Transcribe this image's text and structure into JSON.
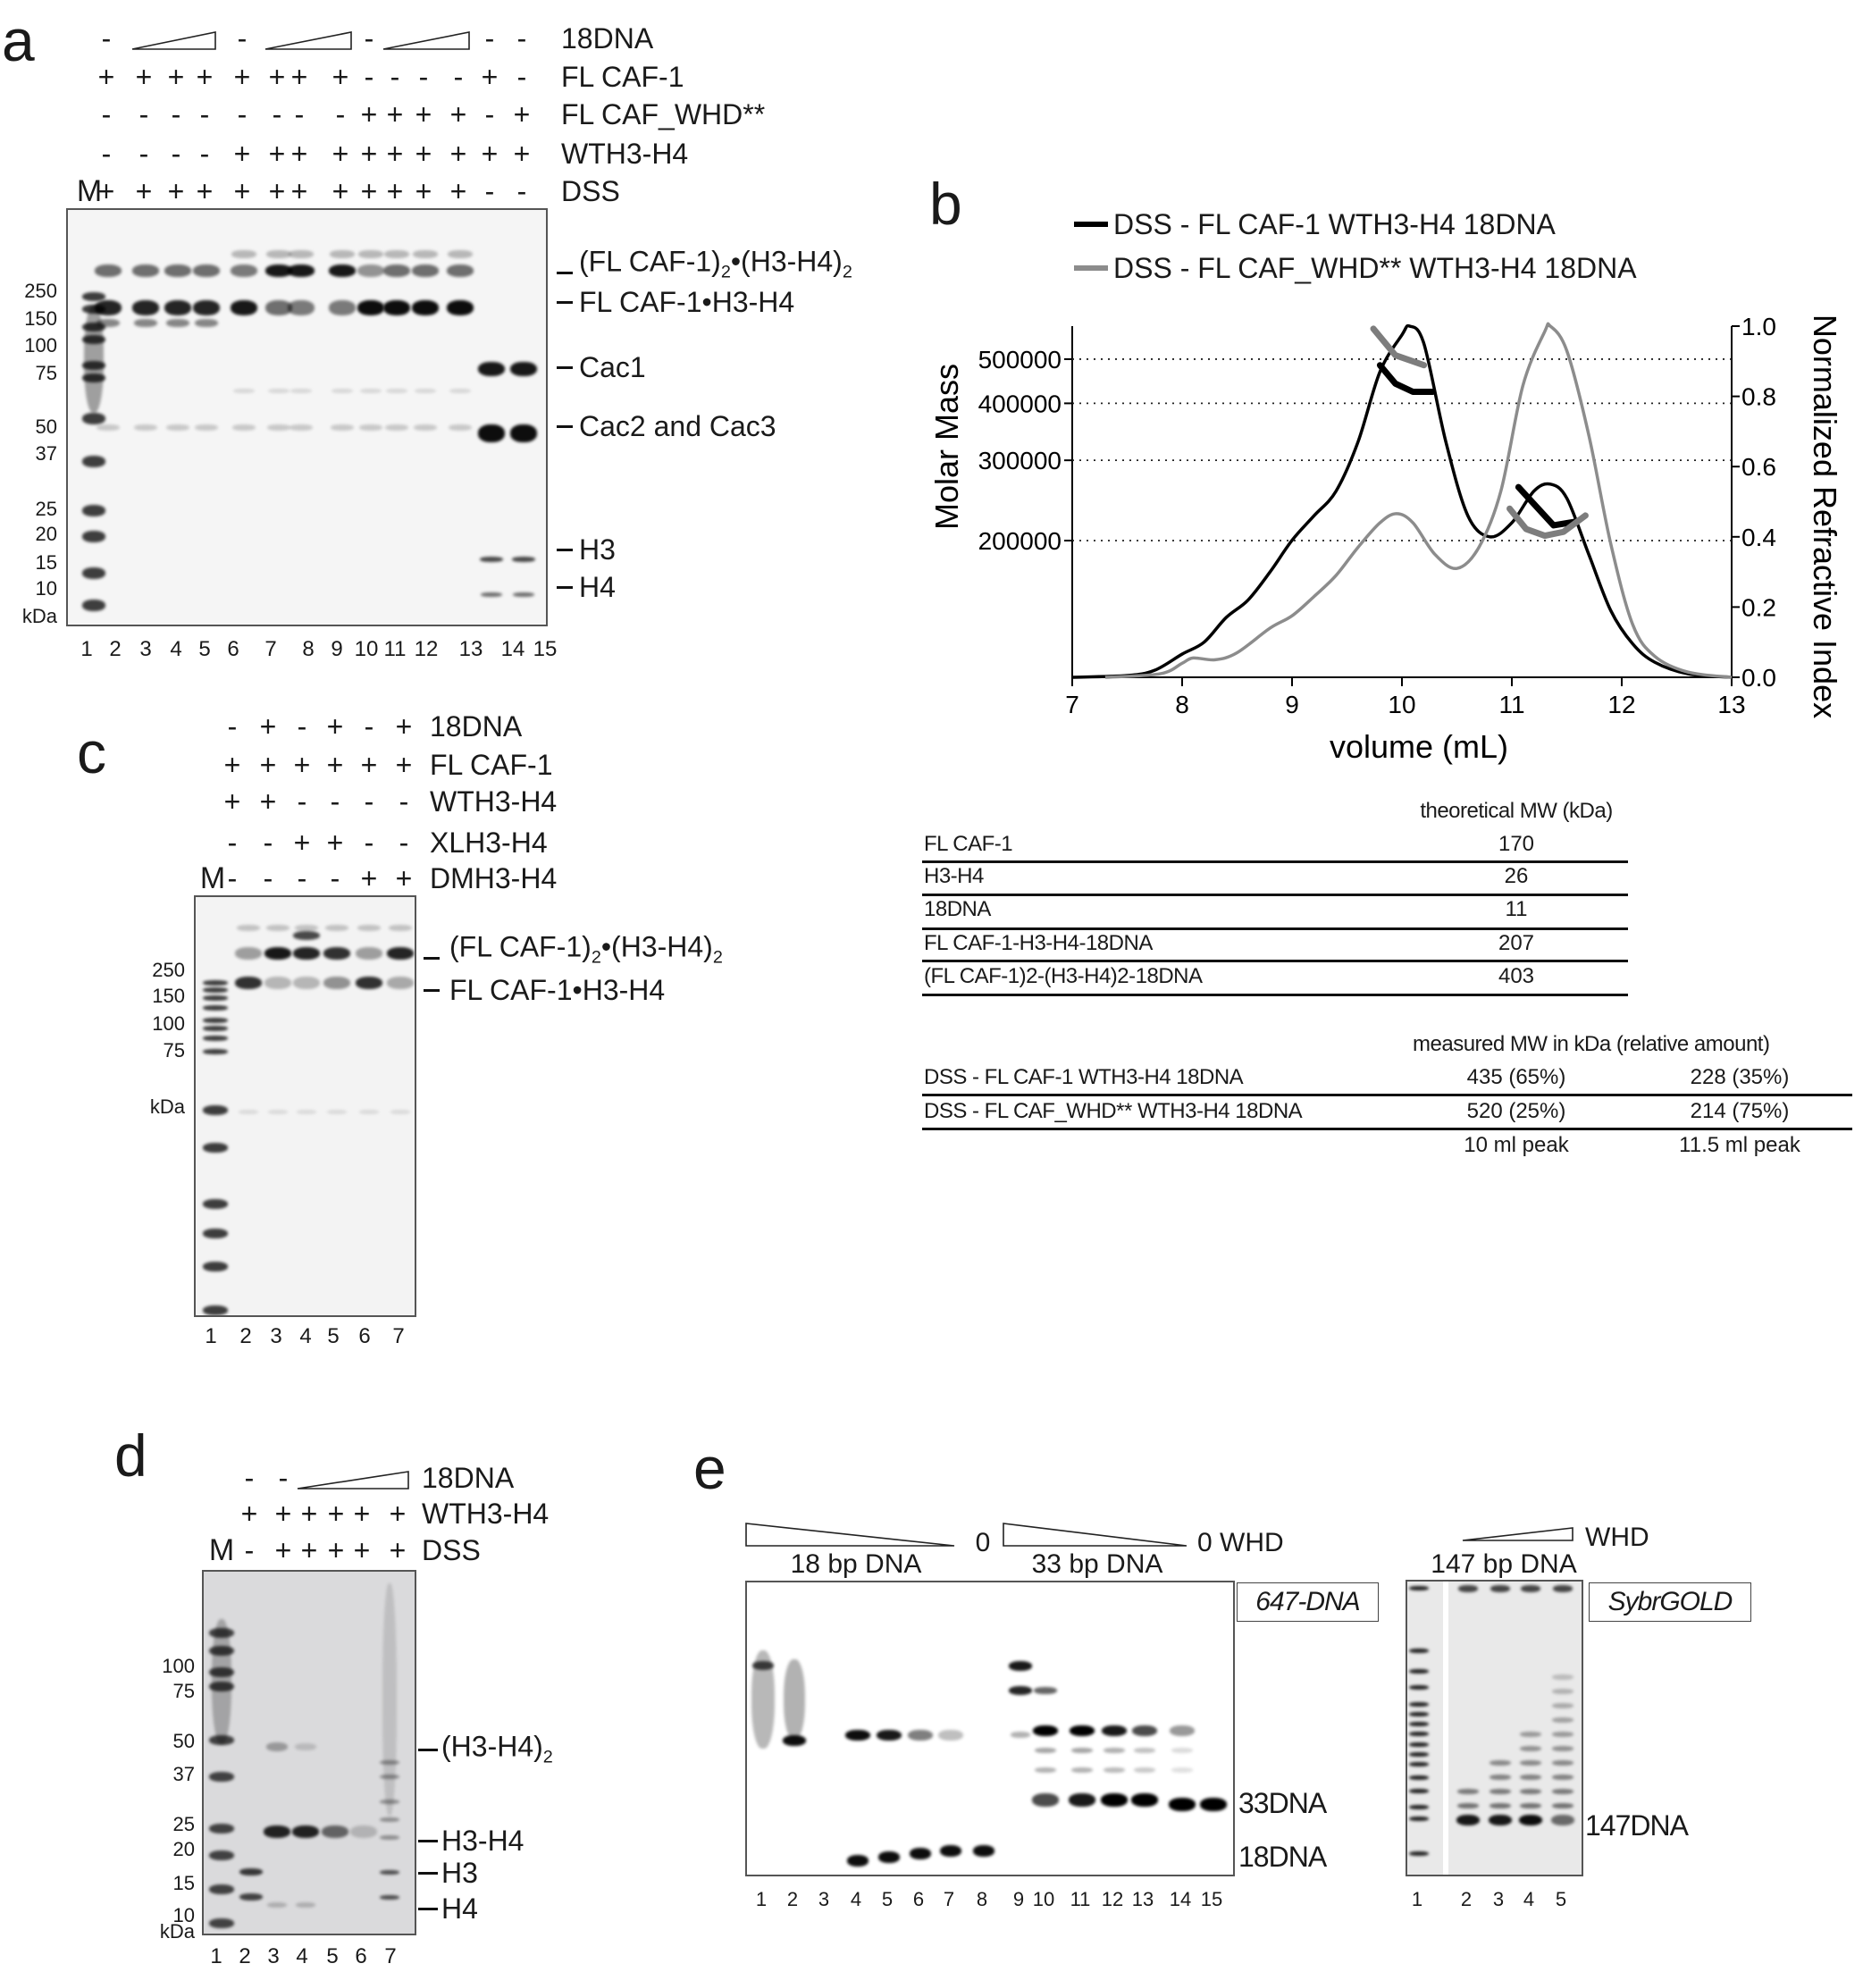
{
  "panel_a": {
    "letter": "a",
    "marker_label": "M",
    "conditions": [
      {
        "label": "18DNA",
        "symbols": [
          "-",
          "ramp",
          "-",
          "ramp",
          "-",
          "ramp",
          "-",
          "-"
        ]
      },
      {
        "label": "FL CAF-1",
        "symbols": [
          "+",
          "+",
          "+",
          "+",
          "+",
          "+",
          "+",
          "+",
          "-",
          "-",
          "-",
          "-",
          "+",
          "-"
        ]
      },
      {
        "label": "FL CAF_WHD**",
        "symbols": [
          "-",
          "-",
          "-",
          "-",
          "-",
          "-",
          "-",
          "-",
          "+",
          "+",
          "+",
          "+",
          "-",
          "+"
        ]
      },
      {
        "label": "WTH3-H4",
        "symbols": [
          "-",
          "-",
          "-",
          "-",
          "+",
          "+",
          "+",
          "+",
          "+",
          "+",
          "+",
          "+",
          "+",
          "+"
        ]
      },
      {
        "label": "DSS",
        "symbols": [
          "+",
          "+",
          "+",
          "+",
          "+",
          "+",
          "+",
          "+",
          "+",
          "+",
          "+",
          "+",
          "-",
          "-"
        ]
      }
    ],
    "markers": [
      "250",
      "150",
      "100",
      "75",
      "50",
      "37",
      "25",
      "20",
      "15",
      "10",
      "kDa"
    ],
    "lanes": [
      "1",
      "2",
      "3",
      "4",
      "5",
      "6",
      "7",
      "8",
      "9",
      "10",
      "11",
      "12",
      "13",
      "14",
      "15"
    ],
    "band_labels": [
      {
        "parts": [
          "(FL CAF-1)",
          "2",
          "•(H3-H4)",
          "2"
        ]
      },
      {
        "parts": [
          "FL CAF-1•H3-H4"
        ]
      },
      {
        "parts": [
          "Cac1"
        ]
      },
      {
        "parts": [
          "Cac2 and Cac3"
        ]
      },
      {
        "parts": [
          "H3"
        ]
      },
      {
        "parts": [
          "H4"
        ]
      }
    ]
  },
  "panel_b": {
    "letter": "b",
    "theoretical_table": {
      "header": "theoretical MW (kDa)",
      "rows": [
        {
          "name": "FL CAF-1",
          "value": "170"
        },
        {
          "name": "H3-H4",
          "value": "26"
        },
        {
          "name": "18DNA",
          "value": "11"
        },
        {
          "name": "FL CAF-1-H3-H4-18DNA",
          "value": "207"
        },
        {
          "name": "(FL CAF-1)2-(H3-H4)2-18DNA",
          "value": "403"
        }
      ]
    },
    "measured_table": {
      "header": "measured MW in kDa (relative amount)",
      "rows": [
        {
          "name": "DSS - FL CAF-1 WTH3-H4 18DNA",
          "peak1": "435 (65%)",
          "peak2": "228 (35%)"
        },
        {
          "name": "DSS - FL CAF_WHD** WTH3-H4 18DNA",
          "peak1": "520 (25%)",
          "peak2": "214 (75%)"
        }
      ],
      "footer": [
        "10 ml peak",
        "11.5 ml peak"
      ]
    }
  },
  "panel_c": {
    "letter": "c",
    "marker_label": "M",
    "conditions": [
      {
        "label": "18DNA",
        "symbols": [
          "-",
          "+",
          "-",
          "+",
          "-",
          "+"
        ]
      },
      {
        "label": "FL CAF-1",
        "symbols": [
          "+",
          "+",
          "+",
          "+",
          "+",
          "+"
        ]
      },
      {
        "label": "WTH3-H4",
        "symbols": [
          "+",
          "+",
          "-",
          "-",
          "-",
          "-"
        ]
      },
      {
        "label": "XLH3-H4",
        "symbols": [
          "-",
          "-",
          "+",
          "+",
          "-",
          "-"
        ]
      },
      {
        "label": "DMH3-H4",
        "symbols": [
          "-",
          "-",
          "-",
          "-",
          "+",
          "+"
        ]
      }
    ],
    "markers": [
      "250",
      "150",
      "100",
      "75",
      "kDa"
    ],
    "lanes": [
      "1",
      "2",
      "3",
      "4",
      "5",
      "6",
      "7"
    ],
    "band_labels": [
      {
        "parts": [
          "(FL CAF-1)",
          "2",
          "•(H3-H4)",
          "2"
        ]
      },
      {
        "parts": [
          "FL CAF-1•H3-H4"
        ]
      }
    ]
  },
  "panel_d": {
    "letter": "d",
    "marker_label": "M",
    "conditions": [
      {
        "label": "18DNA",
        "symbols": [
          "-",
          "-",
          "ramp"
        ]
      },
      {
        "label": "WTH3-H4",
        "symbols": [
          "+",
          "+",
          "+",
          "+",
          "+",
          "+"
        ]
      },
      {
        "label": "DSS",
        "symbols": [
          "-",
          "+",
          "+",
          "+",
          "+",
          "+"
        ]
      }
    ],
    "markers": [
      "100",
      "75",
      "50",
      "37",
      "25",
      "20",
      "15",
      "10",
      "kDa"
    ],
    "lanes": [
      "1",
      "2",
      "3",
      "4",
      "5",
      "6",
      "7"
    ],
    "band_labels": [
      {
        "parts": [
          "(H3-H4)",
          "2"
        ]
      },
      {
        "parts": [
          "H3-H4"
        ]
      },
      {
        "parts": [
          "H3"
        ]
      },
      {
        "parts": [
          "H4"
        ]
      }
    ]
  },
  "panel_e": {
    "letter": "e",
    "left_gel": {
      "groups": [
        {
          "label": "18 bp DNA",
          "end": "0"
        },
        {
          "label": "33 bp DNA",
          "end": "0 WHD"
        }
      ],
      "excluded_mark": "X",
      "stain": "647-DNA",
      "band_labels": [
        "33DNA",
        "18DNA"
      ],
      "lanes": [
        "1",
        "2",
        "3",
        "4",
        "5",
        "6",
        "7",
        "8",
        "9",
        "10",
        "11",
        "12",
        "13",
        "14",
        "15"
      ]
    },
    "right_gel": {
      "label": "147 bp DNA",
      "ramp_label": "WHD",
      "stain": "SybrGOLD",
      "band_labels": [
        "147DNA"
      ],
      "lanes": [
        "1",
        "2",
        "3",
        "4",
        "5"
      ]
    }
  },
  "chart_data": {
    "type": "line",
    "legend": [
      {
        "label": "DSS - FL CAF-1 WTH3-H4 18DNA",
        "color": "#000000"
      },
      {
        "label": "DSS - FL CAF_WHD** WTH3-H4 18DNA",
        "color": "#8c8c8c"
      }
    ],
    "legend_position": "top",
    "xlabel": "volume (mL)",
    "ylabel_left": "Molar Mass",
    "ylabel_right": "Normalized Refractive Index",
    "xlim": [
      7,
      13
    ],
    "xticks": [
      "7",
      "8",
      "9",
      "10",
      "11",
      "12",
      "13"
    ],
    "left_axis_scale": "log",
    "left_ticks": [
      {
        "value": 500000,
        "label": "500000"
      },
      {
        "value": 400000,
        "label": "400000"
      },
      {
        "value": 300000,
        "label": "300000"
      },
      {
        "value": 200000,
        "label": "200000"
      }
    ],
    "grid": "dotted horizontal lines at left-axis ticks",
    "right_ylim": [
      0,
      1
    ],
    "right_ticks": [
      "0.0",
      "0.2",
      "0.4",
      "0.6",
      "0.8",
      "1.0"
    ],
    "series": [
      {
        "name": "DSS - FL CAF-1 WTH3-H4 18DNA",
        "color": "#000000",
        "refractive_index": {
          "x": [
            7,
            7.5,
            7.75,
            8,
            8.2,
            8.4,
            8.6,
            8.8,
            9,
            9.2,
            9.4,
            9.6,
            9.8,
            10,
            10.07,
            10.2,
            10.4,
            10.6,
            10.8,
            11,
            11.2,
            11.35,
            11.5,
            11.7,
            11.9,
            12.1,
            12.3,
            12.6,
            13
          ],
          "y": [
            0,
            0.005,
            0.02,
            0.066,
            0.1,
            0.17,
            0.22,
            0.3,
            0.39,
            0.46,
            0.53,
            0.67,
            0.87,
            0.975,
            1,
            0.95,
            0.67,
            0.46,
            0.4,
            0.44,
            0.53,
            0.55,
            0.51,
            0.35,
            0.19,
            0.095,
            0.043,
            0.01,
            0
          ]
        },
        "molar_mass": [
          {
            "x": [
              9.8,
              9.94,
              10.1,
              10.28
            ],
            "y": [
              485000,
              442000,
              424000,
              424000
            ]
          },
          {
            "x": [
              11.06,
              11.24,
              11.38,
              11.58
            ],
            "y": [
              262000,
              235000,
              216000,
              220000
            ]
          }
        ]
      },
      {
        "name": "DSS - FL CAF_WHD** WTH3-H4 18DNA",
        "color": "#8c8c8c",
        "refractive_index": {
          "x": [
            7.3,
            7.8,
            8,
            8.1,
            8.3,
            8.5,
            8.8,
            9,
            9.2,
            9.4,
            9.6,
            9.8,
            9.95,
            10.1,
            10.3,
            10.5,
            10.7,
            10.9,
            11.1,
            11.3,
            11.35,
            11.5,
            11.7,
            11.9,
            12.1,
            12.3,
            12.6,
            13
          ],
          "y": [
            0,
            0.01,
            0.04,
            0.055,
            0.05,
            0.07,
            0.14,
            0.175,
            0.23,
            0.29,
            0.37,
            0.44,
            0.466,
            0.44,
            0.35,
            0.31,
            0.37,
            0.53,
            0.83,
            0.985,
            1,
            0.93,
            0.69,
            0.38,
            0.15,
            0.06,
            0.015,
            0
          ]
        },
        "molar_mass": [
          {
            "x": [
              9.74,
              9.94,
              10.2
            ],
            "y": [
              583000,
              510000,
              485000
            ]
          },
          {
            "x": [
              10.98,
              11.13,
              11.3,
              11.47,
              11.67
            ],
            "y": [
              235000,
              212000,
              205000,
              209000,
              227000
            ]
          }
        ]
      }
    ]
  }
}
